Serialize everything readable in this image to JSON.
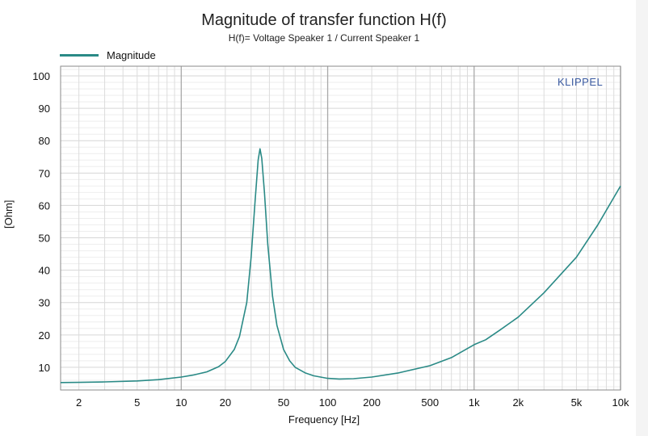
{
  "chart_data": {
    "type": "line",
    "title": "Magnitude of transfer function H(f)",
    "subtitle": "H(f)= Voltage Speaker 1 / Current Speaker 1",
    "xlabel": "Frequency [Hz]",
    "ylabel": "[Ohm]",
    "x_scale": "log",
    "xlim": [
      1.5,
      10000
    ],
    "ylim": [
      3,
      103
    ],
    "grid": true,
    "legend_position": "top-left",
    "brand_label": "KLIPPEL",
    "x_ticks": [
      {
        "value": 2,
        "label": "2"
      },
      {
        "value": 5,
        "label": "5"
      },
      {
        "value": 10,
        "label": "10"
      },
      {
        "value": 20,
        "label": "20"
      },
      {
        "value": 50,
        "label": "50"
      },
      {
        "value": 100,
        "label": "100"
      },
      {
        "value": 200,
        "label": "200"
      },
      {
        "value": 500,
        "label": "500"
      },
      {
        "value": 1000,
        "label": "1k"
      },
      {
        "value": 2000,
        "label": "2k"
      },
      {
        "value": 5000,
        "label": "5k"
      },
      {
        "value": 10000,
        "label": "10k"
      }
    ],
    "y_ticks": [
      10,
      20,
      30,
      40,
      50,
      60,
      70,
      80,
      90,
      100
    ],
    "series": [
      {
        "name": "Magnitude",
        "color": "#2a8a86",
        "points": [
          [
            1.5,
            5.3
          ],
          [
            2,
            5.35
          ],
          [
            3,
            5.5
          ],
          [
            5,
            5.8
          ],
          [
            7,
            6.2
          ],
          [
            10,
            7.0
          ],
          [
            12,
            7.6
          ],
          [
            15,
            8.6
          ],
          [
            18,
            10.2
          ],
          [
            20,
            11.8
          ],
          [
            23,
            15.5
          ],
          [
            25,
            19.5
          ],
          [
            28,
            30.0
          ],
          [
            30,
            44.0
          ],
          [
            32,
            62.0
          ],
          [
            33.5,
            74.0
          ],
          [
            34.5,
            77.5
          ],
          [
            35.5,
            74.5
          ],
          [
            37,
            64.0
          ],
          [
            39,
            48.0
          ],
          [
            42,
            32.0
          ],
          [
            45,
            23.0
          ],
          [
            50,
            15.5
          ],
          [
            55,
            12.0
          ],
          [
            60,
            10.0
          ],
          [
            70,
            8.3
          ],
          [
            80,
            7.4
          ],
          [
            100,
            6.6
          ],
          [
            120,
            6.4
          ],
          [
            150,
            6.5
          ],
          [
            200,
            7.0
          ],
          [
            300,
            8.2
          ],
          [
            500,
            10.5
          ],
          [
            700,
            13.0
          ],
          [
            1000,
            17.0
          ],
          [
            1200,
            18.5
          ],
          [
            1500,
            21.5
          ],
          [
            2000,
            25.5
          ],
          [
            3000,
            33.0
          ],
          [
            5000,
            44.0
          ],
          [
            7000,
            54.0
          ],
          [
            10000,
            66.0
          ]
        ]
      }
    ]
  }
}
